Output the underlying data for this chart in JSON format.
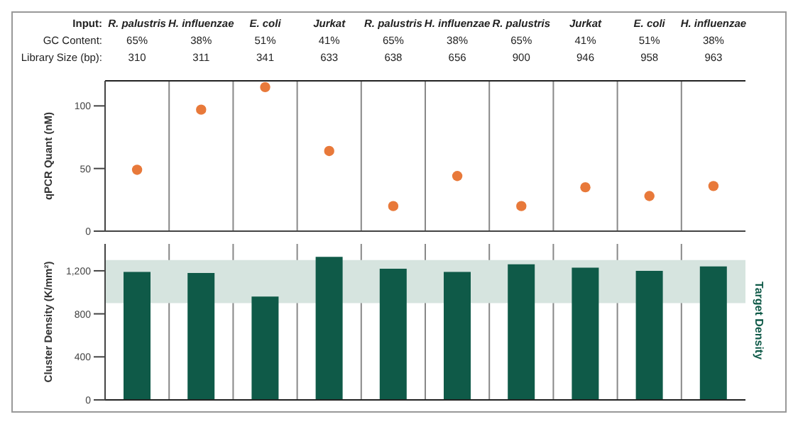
{
  "chart_data": [
    {
      "type": "scatter",
      "categories": [
        "R. palustris\n65%\n310",
        "H. influenzae\n38%\n311",
        "E. coli\n51%\n341",
        "Jurkat\n41%\n633",
        "R. palustris\n65%\n638",
        "H. influenzae\n38%\n656",
        "R. palustris\n65%\n900",
        "Jurkat\n41%\n946",
        "E. coli\n51%\n958",
        "H. influenzae\n38%\n963"
      ],
      "annotations": [
        "Input:",
        "GC Content:",
        "Library Size (bp):"
      ],
      "ylabel": "qPCR Quant (nM)",
      "series": [
        {
          "color": "#e8793a",
          "values": [
            49,
            97,
            115,
            64,
            20,
            44,
            20,
            35,
            28,
            36
          ]
        }
      ],
      "ylim": [
        0,
        120
      ],
      "yticks": [
        0,
        50,
        100
      ],
      "grid": "x",
      "marker": "circle"
    },
    {
      "type": "bar",
      "categories": [
        null,
        null,
        null,
        null,
        null,
        null,
        null,
        null,
        null,
        null
      ],
      "tick_labels": "y",
      "ylabel": "Cluster Density (K/mm²)",
      "series": [
        {
          "color": "#0f5a48",
          "values": [
            1190,
            1180,
            960,
            1330,
            1220,
            1190,
            1260,
            1230,
            1200,
            1240
          ]
        }
      ],
      "ylim": [
        0,
        1450
      ],
      "yticks": [
        0,
        400,
        800,
        {
          "value": 1200,
          "label": "1,200"
        }
      ],
      "bands": [
        {
          "axis": "y",
          "from": 900,
          "to": 1300,
          "label": "Target Density",
          "color": "#d6e4df"
        }
      ],
      "grid": "x"
    }
  ]
}
